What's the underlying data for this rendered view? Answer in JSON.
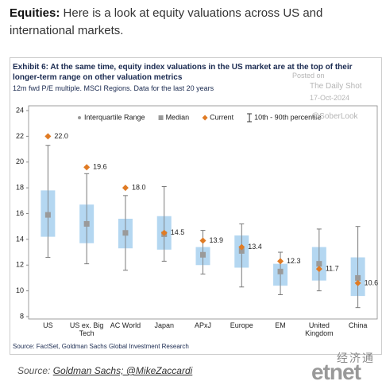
{
  "intro": {
    "lead": "Equities:",
    "text": "Here is a look at equity valuations across US and international markets."
  },
  "chart_data": {
    "type": "box",
    "title": "Exhibit 6: At the same time, equity index valuations in the US market are at the top of their longer-term range on other valuation metrics",
    "subtitle": "12m fwd P/E multiple. MSCI Regions. Data for the last 20 years",
    "source": "Source: FactSet, Goldman Sachs Global Investment Research",
    "categories": [
      "US",
      "US ex. Big Tech",
      "AC World",
      "Japan",
      "APxJ",
      "Europe",
      "EM",
      "United Kingdom",
      "China"
    ],
    "series": [
      {
        "name": "Interquartile Range",
        "color": "#a7d0ee",
        "low": [
          14.2,
          13.7,
          13.3,
          13.2,
          12.0,
          11.8,
          10.4,
          10.8,
          9.6
        ],
        "high": [
          17.8,
          16.7,
          15.6,
          15.8,
          13.4,
          14.3,
          12.1,
          13.4,
          12.6
        ]
      },
      {
        "name": "Median",
        "color": "#9a9a9a",
        "values": [
          15.9,
          15.2,
          14.5,
          14.4,
          12.8,
          13.1,
          11.5,
          12.1,
          11.0
        ]
      },
      {
        "name": "Current",
        "color": "#e07b24",
        "values": [
          22,
          19.6,
          18,
          14.5,
          13.9,
          13.4,
          12.3,
          11.7,
          10.6
        ],
        "value_labels": [
          "22.0",
          "19.6",
          "18.0",
          "14.5",
          "13.9",
          "13.4",
          "12.3",
          "11.7",
          "10.6"
        ]
      },
      {
        "name": "10th - 90th percentile",
        "color": "#7a7a7a",
        "low": [
          12.6,
          12.1,
          11.6,
          12.3,
          11.3,
          10.3,
          9.7,
          10.0,
          8.7
        ],
        "high": [
          21.3,
          19.1,
          17.4,
          18.1,
          14.7,
          15.2,
          13.0,
          14.8,
          15.0
        ]
      }
    ],
    "ylim": [
      8,
      24
    ],
    "yticks": [
      8,
      10,
      12,
      14,
      16,
      18,
      20,
      22,
      24
    ],
    "grid": false
  },
  "watermark": [
    "Posted on",
    "The Daily Shot",
    "17-Oct-2024",
    "@SoberLook"
  ],
  "caption": {
    "label": "Source:",
    "link": "Goldman Sachs; @MikeZaccardi"
  },
  "logo": {
    "chinese": "经济通",
    "latin": "etnet"
  }
}
